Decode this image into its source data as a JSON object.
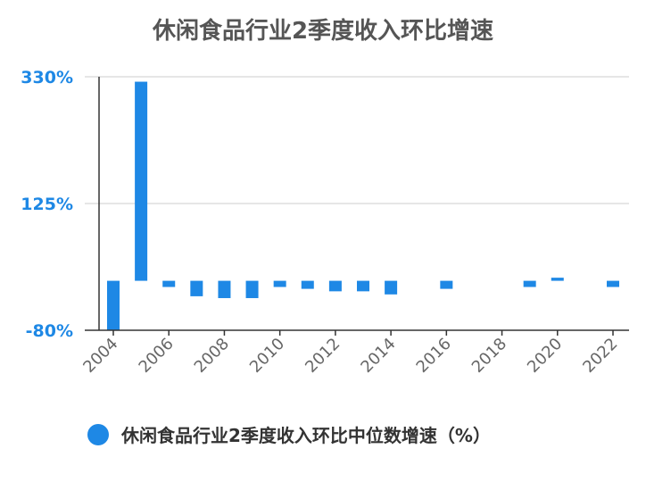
{
  "chart_data": {
    "type": "bar",
    "title": "休闲食品行业2季度收入环比增速",
    "categories": [
      "2004",
      "2005",
      "2006",
      "2007",
      "2008",
      "2009",
      "2010",
      "2011",
      "2012",
      "2013",
      "2014",
      "2015",
      "2016",
      "2017",
      "2018",
      "2019",
      "2020",
      "2021",
      "2022"
    ],
    "series": [
      {
        "name": "休闲食品行业2季度收入环比中位数增速（%）",
        "values": [
          -80,
          322,
          -10,
          -25,
          -28,
          -28,
          -10,
          -13,
          -17,
          -17,
          -22,
          0,
          -13,
          0,
          0,
          -10,
          5,
          0,
          -10
        ]
      }
    ],
    "ylim": [
      -80,
      330
    ],
    "yticks": [
      {
        "value": -80,
        "label": "-80%"
      },
      {
        "value": 125,
        "label": "125%"
      },
      {
        "value": 330,
        "label": "330%"
      }
    ],
    "xtick_labels": [
      "2004",
      "2006",
      "2008",
      "2010",
      "2012",
      "2014",
      "2016",
      "2018",
      "2020",
      "2022"
    ],
    "grid": true,
    "legend_position": "bottom",
    "colors": {
      "bar": "#1e88e5",
      "tick_label": "#1e88e5",
      "axis": "#333333",
      "grid": "#dddddd"
    }
  }
}
